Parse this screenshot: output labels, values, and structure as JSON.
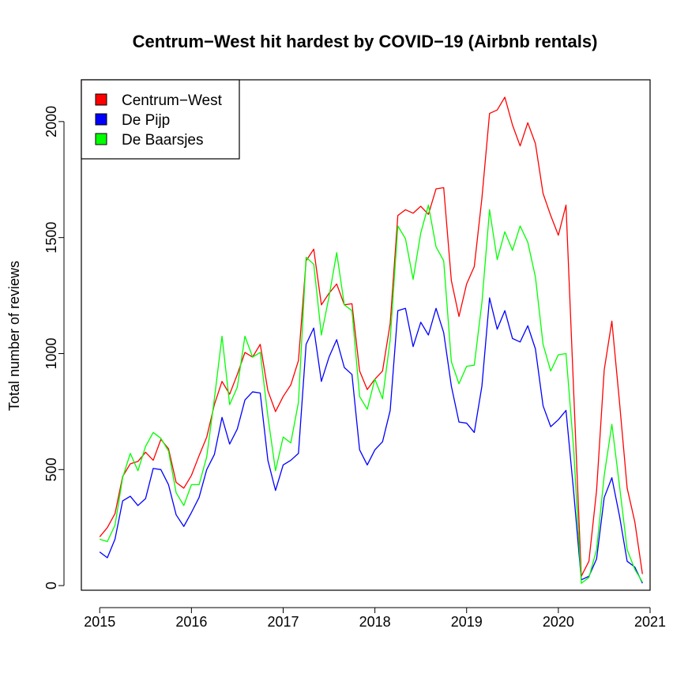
{
  "chart_data": {
    "type": "line",
    "title": "Centrum−West hit hardest by COVID−19 (Airbnb rentals)",
    "xlabel": "",
    "ylabel": "Total number of reviews",
    "xlim": [
      2014.8,
      2021.0
    ],
    "ylim": [
      -20,
      2180
    ],
    "x_ticks": [
      2015,
      2016,
      2017,
      2018,
      2019,
      2020,
      2021
    ],
    "x_tick_labels": [
      "2015",
      "2016",
      "2017",
      "2018",
      "2019",
      "2020",
      "2021"
    ],
    "y_ticks": [
      0,
      500,
      1000,
      1500,
      2000
    ],
    "y_tick_labels": [
      "0",
      "500",
      "1000",
      "1500",
      "2000"
    ],
    "grid": false,
    "legend_position": "top-left",
    "x_start": 2015,
    "x_step_months": 1,
    "series": [
      {
        "name": "Centrum−West",
        "color": "#FF0000",
        "values": [
          210,
          250,
          310,
          470,
          525,
          535,
          575,
          540,
          630,
          590,
          445,
          420,
          475,
          560,
          640,
          780,
          880,
          825,
          910,
          1005,
          985,
          1040,
          840,
          750,
          815,
          865,
          970,
          1400,
          1450,
          1210,
          1260,
          1300,
          1210,
          1215,
          925,
          845,
          890,
          925,
          1130,
          1595,
          1620,
          1605,
          1635,
          1600,
          1710,
          1715,
          1315,
          1160,
          1300,
          1375,
          1670,
          2035,
          2050,
          2105,
          1985,
          1895,
          1995,
          1905,
          1690,
          1595,
          1510,
          1640,
          840,
          40,
          105,
          410,
          930,
          1140,
          790,
          420,
          275,
          50
        ]
      },
      {
        "name": "De Pijp",
        "color": "#0000FF",
        "values": [
          145,
          120,
          200,
          365,
          385,
          345,
          375,
          505,
          500,
          435,
          305,
          255,
          315,
          380,
          500,
          565,
          725,
          610,
          675,
          800,
          835,
          830,
          540,
          410,
          520,
          540,
          570,
          1040,
          1110,
          880,
          985,
          1060,
          940,
          910,
          585,
          520,
          585,
          620,
          755,
          1185,
          1195,
          1030,
          1135,
          1080,
          1195,
          1090,
          860,
          705,
          700,
          660,
          860,
          1240,
          1105,
          1185,
          1065,
          1050,
          1120,
          1020,
          775,
          685,
          715,
          755,
          405,
          25,
          40,
          115,
          380,
          465,
          300,
          105,
          80,
          10
        ]
      },
      {
        "name": "De Baarsjes",
        "color": "#00FF00",
        "values": [
          200,
          190,
          260,
          465,
          570,
          495,
          600,
          660,
          635,
          580,
          400,
          345,
          435,
          435,
          555,
          805,
          1075,
          780,
          855,
          1075,
          985,
          1005,
          730,
          495,
          640,
          615,
          790,
          1415,
          1385,
          1080,
          1245,
          1435,
          1210,
          1185,
          815,
          760,
          890,
          805,
          1060,
          1550,
          1495,
          1320,
          1520,
          1640,
          1460,
          1400,
          965,
          870,
          945,
          950,
          1220,
          1620,
          1405,
          1525,
          1445,
          1550,
          1480,
          1330,
          1040,
          925,
          995,
          1000,
          590,
          10,
          35,
          155,
          475,
          695,
          430,
          155,
          70,
          15
        ]
      }
    ]
  }
}
